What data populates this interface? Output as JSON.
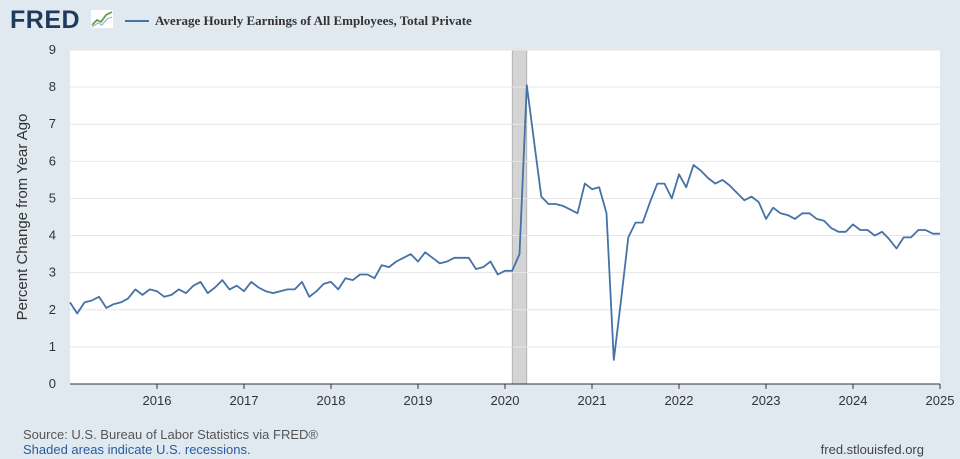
{
  "header": {
    "logo_text": "FRED",
    "logo_icon": "fred-graph-icon",
    "series_title": "Average Hourly Earnings of All Employees, Total Private"
  },
  "colors": {
    "background": "#e1e9f0",
    "plot_background": "#ffffff",
    "line": "#4572a7",
    "recession": "#d4d4d4",
    "grid": "#e6e6e6"
  },
  "footer": {
    "source": "Source: U.S. Bureau of Labor Statistics via FRED®",
    "recession_note": "Shaded areas indicate U.S. recessions.",
    "url": "fred.stlouisfed.org"
  },
  "chart_data": {
    "type": "line",
    "title": "Average Hourly Earnings of All Employees, Total Private",
    "xlabel": "",
    "ylabel": "Percent Change from Year Ago",
    "ylim": [
      0,
      9
    ],
    "yticks": [
      "0",
      "1",
      "2",
      "3",
      "4",
      "5",
      "6",
      "7",
      "8",
      "9"
    ],
    "xlim": [
      "2015-01",
      "2025-01"
    ],
    "xticks": [
      "2016",
      "2017",
      "2018",
      "2019",
      "2020",
      "2021",
      "2022",
      "2023",
      "2024",
      "2025"
    ],
    "grid": "horizontal",
    "recession": {
      "start": "2020-02",
      "end": "2020-04"
    },
    "series": [
      {
        "name": "Average Hourly Earnings of All Employees, Total Private",
        "x": [
          "2015-01",
          "2015-02",
          "2015-03",
          "2015-04",
          "2015-05",
          "2015-06",
          "2015-07",
          "2015-08",
          "2015-09",
          "2015-10",
          "2015-11",
          "2015-12",
          "2016-01",
          "2016-02",
          "2016-03",
          "2016-04",
          "2016-05",
          "2016-06",
          "2016-07",
          "2016-08",
          "2016-09",
          "2016-10",
          "2016-11",
          "2016-12",
          "2017-01",
          "2017-02",
          "2017-03",
          "2017-04",
          "2017-05",
          "2017-06",
          "2017-07",
          "2017-08",
          "2017-09",
          "2017-10",
          "2017-11",
          "2017-12",
          "2018-01",
          "2018-02",
          "2018-03",
          "2018-04",
          "2018-05",
          "2018-06",
          "2018-07",
          "2018-08",
          "2018-09",
          "2018-10",
          "2018-11",
          "2018-12",
          "2019-01",
          "2019-02",
          "2019-03",
          "2019-04",
          "2019-05",
          "2019-06",
          "2019-07",
          "2019-08",
          "2019-09",
          "2019-10",
          "2019-11",
          "2019-12",
          "2020-01",
          "2020-02",
          "2020-03",
          "2020-04",
          "2020-05",
          "2020-06",
          "2020-07",
          "2020-08",
          "2020-09",
          "2020-10",
          "2020-11",
          "2020-12",
          "2021-01",
          "2021-02",
          "2021-03",
          "2021-04",
          "2021-05",
          "2021-06",
          "2021-07",
          "2021-08",
          "2021-09",
          "2021-10",
          "2021-11",
          "2021-12",
          "2022-01",
          "2022-02",
          "2022-03",
          "2022-04",
          "2022-05",
          "2022-06",
          "2022-07",
          "2022-08",
          "2022-09",
          "2022-10",
          "2022-11",
          "2022-12",
          "2023-01",
          "2023-02",
          "2023-03",
          "2023-04",
          "2023-05",
          "2023-06",
          "2023-07",
          "2023-08",
          "2023-09",
          "2023-10",
          "2023-11",
          "2023-12",
          "2024-01",
          "2024-02",
          "2024-03",
          "2024-04",
          "2024-05",
          "2024-06",
          "2024-07",
          "2024-08",
          "2024-09",
          "2024-10",
          "2024-11",
          "2024-12",
          "2025-01"
        ],
        "values": [
          2.2,
          1.9,
          2.2,
          2.25,
          2.35,
          2.05,
          2.15,
          2.2,
          2.3,
          2.55,
          2.4,
          2.55,
          2.5,
          2.35,
          2.4,
          2.55,
          2.45,
          2.65,
          2.75,
          2.45,
          2.6,
          2.8,
          2.55,
          2.65,
          2.5,
          2.75,
          2.6,
          2.5,
          2.45,
          2.5,
          2.55,
          2.55,
          2.75,
          2.35,
          2.5,
          2.7,
          2.75,
          2.55,
          2.85,
          2.8,
          2.95,
          2.95,
          2.85,
          3.2,
          3.15,
          3.3,
          3.4,
          3.5,
          3.3,
          3.55,
          3.4,
          3.25,
          3.3,
          3.4,
          3.4,
          3.4,
          3.1,
          3.15,
          3.3,
          2.95,
          3.05,
          3.05,
          3.5,
          8.05,
          6.55,
          5.05,
          4.85,
          4.85,
          4.8,
          4.7,
          4.6,
          5.4,
          5.25,
          5.3,
          4.6,
          0.65,
          2.25,
          3.95,
          4.35,
          4.35,
          4.9,
          5.4,
          5.4,
          5.0,
          5.65,
          5.3,
          5.9,
          5.75,
          5.55,
          5.4,
          5.5,
          5.35,
          5.15,
          4.95,
          5.05,
          4.9,
          4.45,
          4.75,
          4.6,
          4.55,
          4.45,
          4.6,
          4.6,
          4.45,
          4.4,
          4.2,
          4.1,
          4.1,
          4.3,
          4.15,
          4.15,
          4.0,
          4.1,
          3.9,
          3.65,
          3.95,
          3.95,
          4.15,
          4.15,
          4.05,
          4.05
        ]
      }
    ]
  }
}
